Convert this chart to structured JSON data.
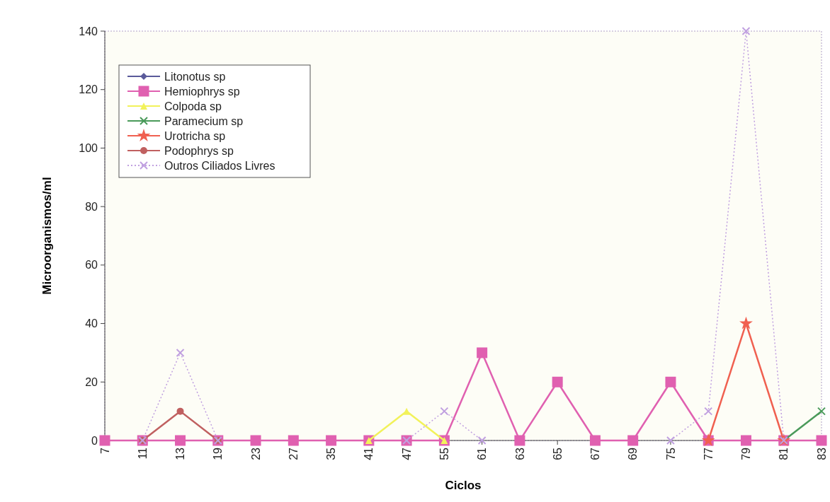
{
  "chart_data": {
    "type": "line",
    "xlabel": "Ciclos",
    "ylabel": "Microorganismos/ml",
    "categories": [
      "7",
      "11",
      "13",
      "19",
      "23",
      "27",
      "35",
      "41",
      "47",
      "55",
      "61",
      "63",
      "65",
      "67",
      "69",
      "75",
      "77",
      "79",
      "81",
      "83"
    ],
    "ylim": [
      0,
      140
    ],
    "yticks": [
      0,
      20,
      40,
      60,
      80,
      100,
      120,
      140
    ],
    "grid": false,
    "legend": "top left",
    "series": [
      {
        "name": "Litonotus sp",
        "color": "#5a5a9a",
        "marker": "diamond",
        "values": [
          null,
          null,
          null,
          null,
          null,
          null,
          null,
          null,
          null,
          null,
          null,
          null,
          null,
          null,
          null,
          null,
          null,
          null,
          null,
          null
        ]
      },
      {
        "name": "Hemiophrys sp",
        "color": "#e060b0",
        "marker": "square",
        "values": [
          0,
          0,
          0,
          0,
          0,
          0,
          0,
          0,
          0,
          0,
          30,
          0,
          20,
          0,
          0,
          20,
          0,
          0,
          0,
          0
        ]
      },
      {
        "name": "Colpoda sp",
        "color": "#f2f25a",
        "marker": "triangle",
        "values": [
          null,
          null,
          null,
          null,
          null,
          null,
          null,
          0,
          10,
          0,
          null,
          null,
          null,
          null,
          null,
          null,
          null,
          null,
          null,
          null
        ]
      },
      {
        "name": "Paramecium sp",
        "color": "#4a9a5a",
        "marker": "cross",
        "values": [
          null,
          null,
          null,
          null,
          null,
          null,
          null,
          null,
          null,
          null,
          null,
          null,
          null,
          null,
          null,
          null,
          null,
          null,
          0,
          10
        ]
      },
      {
        "name": "Urotricha sp",
        "color": "#f06050",
        "marker": "star",
        "values": [
          null,
          null,
          null,
          null,
          null,
          null,
          null,
          null,
          null,
          null,
          null,
          null,
          null,
          null,
          null,
          null,
          0,
          40,
          0,
          null
        ]
      },
      {
        "name": "Podophrys sp",
        "color": "#c06060",
        "marker": "circle",
        "values": [
          null,
          0,
          10,
          0,
          null,
          null,
          null,
          null,
          null,
          null,
          null,
          null,
          null,
          null,
          null,
          null,
          null,
          null,
          null,
          null
        ]
      },
      {
        "name": "Outros Ciliados Livres",
        "color": "#c0a0e0",
        "marker": "cross",
        "line_style": "dotted",
        "values": [
          null,
          0,
          30,
          0,
          null,
          null,
          null,
          null,
          0,
          10,
          0,
          null,
          null,
          null,
          null,
          0,
          10,
          140,
          0,
          null
        ]
      }
    ]
  }
}
